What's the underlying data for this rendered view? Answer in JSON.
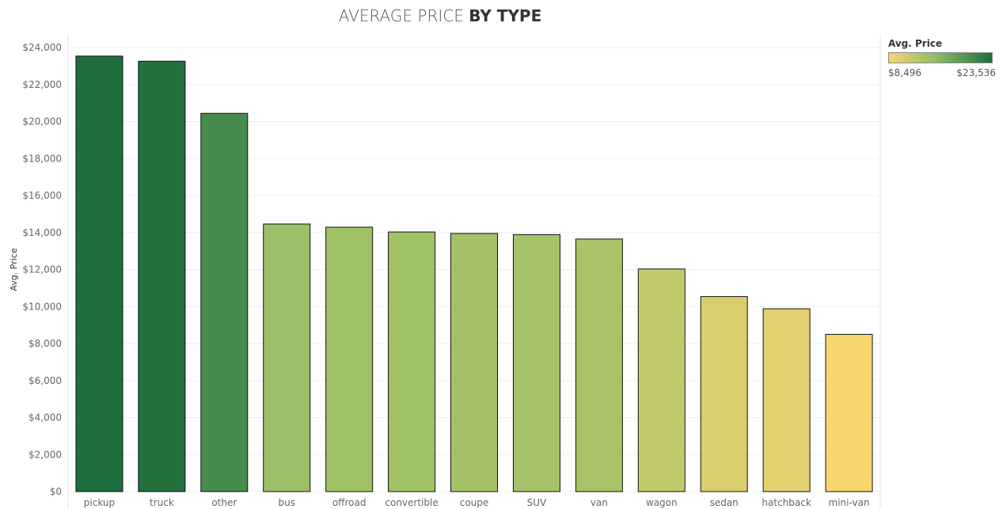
{
  "title": {
    "light": "AVERAGE PRICE",
    "bold": "BY TYPE"
  },
  "legend": {
    "title": "Avg. Price",
    "min_label": "$8,496",
    "max_label": "$23,536",
    "color_low": "#f7d670",
    "color_mid": "#8fbd66",
    "color_high": "#1e6e3e"
  },
  "chart_data": {
    "type": "bar",
    "categories": [
      "pickup",
      "truck",
      "other",
      "bus",
      "offroad",
      "convertible",
      "coupe",
      "SUV",
      "van",
      "wagon",
      "sedan",
      "hatchback",
      "mini-van"
    ],
    "values": [
      23536,
      23260,
      20440,
      14460,
      14290,
      14030,
      13950,
      13890,
      13650,
      12030,
      10540,
      9880,
      8496
    ],
    "ylabel": "Avg. Price",
    "ylim": [
      0,
      24000
    ],
    "yticks": [
      0,
      2000,
      4000,
      6000,
      8000,
      10000,
      12000,
      14000,
      16000,
      18000,
      20000,
      22000,
      24000
    ],
    "ytick_labels": [
      "$0",
      "$2,000",
      "$4,000",
      "$6,000",
      "$8,000",
      "$10,000",
      "$12,000",
      "$14,000",
      "$16,000",
      "$18,000",
      "$20,000",
      "$22,000",
      "$24,000"
    ],
    "grid": true,
    "color_scale": "continuous yellow-green by value",
    "legend_position": "top-right"
  }
}
